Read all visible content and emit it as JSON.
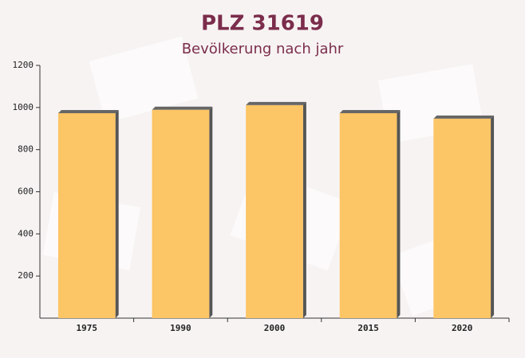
{
  "chart_data": {
    "type": "bar",
    "title": "PLZ 31619",
    "subtitle": "Bevölkerung nach jahr",
    "categories": [
      "1975",
      "1990",
      "2000",
      "2015",
      "2020"
    ],
    "values": [
      973,
      989,
      1011,
      973,
      947
    ],
    "color": "#fcc565",
    "ylim": [
      0,
      1200
    ],
    "yticks": [
      200,
      400,
      600,
      800,
      1000,
      1200
    ],
    "grid": false
  }
}
